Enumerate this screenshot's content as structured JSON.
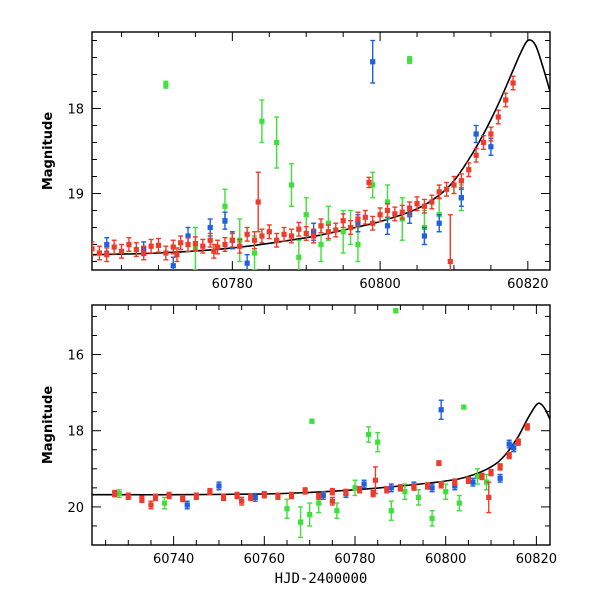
{
  "chart_data": [
    {
      "type": "scatter",
      "title": "",
      "xlabel": "",
      "ylabel": "Magnitude",
      "xlim": [
        60761,
        60823
      ],
      "ylim": [
        19.9,
        17.1
      ],
      "y_inverted": true,
      "xticks": [
        60780,
        60800,
        60820
      ],
      "yticks": [
        18,
        19
      ],
      "colors": {
        "red": "#ee3b2b",
        "green": "#3ee03a",
        "blue": "#1f5fe0",
        "model": "#000000"
      },
      "model_curve": {
        "x": [
          60761,
          60770,
          60780,
          60790,
          60795,
          60800,
          60805,
          60808,
          60810,
          60812,
          60814,
          60816,
          60818,
          60819,
          60820,
          60821,
          60822,
          60823
        ],
        "y": [
          19.72,
          19.7,
          19.64,
          19.52,
          19.43,
          19.33,
          19.18,
          19.02,
          18.85,
          18.6,
          18.3,
          17.95,
          17.55,
          17.35,
          17.2,
          17.25,
          17.5,
          17.8
        ]
      },
      "series": [
        {
          "name": "",
          "color": "red",
          "x": [
            60761,
            60762,
            60763,
            60764,
            60765,
            60766,
            60767,
            60768,
            60769,
            60770,
            60771,
            60772,
            60773,
            60774,
            60775,
            60776,
            60777,
            60778,
            60779,
            60780,
            60781,
            60782,
            60783,
            60784,
            60785,
            60786,
            60787,
            60788,
            60789,
            60790,
            60791,
            60792,
            60793,
            60794,
            60795,
            60796,
            60797,
            60798,
            60799,
            60800,
            60801,
            60802,
            60803,
            60804,
            60805,
            60806,
            60807,
            60808,
            60809,
            60810,
            60811,
            60812,
            60813,
            60814,
            60815,
            60816,
            60817,
            60818,
            60783.5,
            60798.5,
            60809.5,
            60772.5,
            60777.5
          ],
          "y": [
            19.65,
            19.7,
            19.72,
            19.63,
            19.68,
            19.6,
            19.66,
            19.7,
            19.62,
            19.61,
            19.7,
            19.63,
            19.58,
            19.6,
            19.59,
            19.62,
            19.55,
            19.63,
            19.6,
            19.55,
            19.62,
            19.48,
            19.55,
            19.5,
            19.45,
            19.55,
            19.48,
            19.5,
            19.42,
            19.47,
            19.5,
            19.38,
            19.45,
            19.43,
            19.32,
            19.4,
            19.3,
            19.28,
            19.35,
            19.25,
            19.2,
            19.24,
            19.22,
            19.18,
            19.12,
            19.15,
            19.1,
            18.98,
            18.95,
            18.9,
            18.85,
            18.72,
            18.55,
            18.4,
            18.3,
            18.1,
            17.9,
            17.7,
            19.1,
            18.87,
            19.8,
            19.72,
            19.68
          ],
          "err": [
            0.08,
            0.08,
            0.08,
            0.08,
            0.08,
            0.08,
            0.08,
            0.08,
            0.08,
            0.08,
            0.08,
            0.08,
            0.08,
            0.08,
            0.08,
            0.08,
            0.08,
            0.08,
            0.08,
            0.08,
            0.08,
            0.08,
            0.1,
            0.08,
            0.08,
            0.08,
            0.08,
            0.08,
            0.08,
            0.08,
            0.08,
            0.08,
            0.08,
            0.08,
            0.08,
            0.08,
            0.08,
            0.08,
            0.08,
            0.08,
            0.08,
            0.08,
            0.08,
            0.08,
            0.08,
            0.08,
            0.08,
            0.08,
            0.08,
            0.1,
            0.08,
            0.08,
            0.08,
            0.08,
            0.08,
            0.08,
            0.08,
            0.08,
            0.35,
            0.06,
            0.55,
            0.08,
            0.08
          ]
        },
        {
          "name": "",
          "color": "green",
          "x": [
            60771,
            60779,
            60784,
            60786,
            60788,
            60790,
            60793,
            60795,
            60797,
            60799,
            60801,
            60803,
            60804,
            60806,
            60808,
            60811,
            60775,
            60781,
            60783,
            60792,
            60796,
            60789
          ],
          "y": [
            17.72,
            19.15,
            18.15,
            18.4,
            18.9,
            19.25,
            19.35,
            19.45,
            19.6,
            18.9,
            19.1,
            19.3,
            17.43,
            19.4,
            19.25,
            19.05,
            19.65,
            19.55,
            19.7,
            19.6,
            19.4,
            19.75
          ],
          "err": [
            0.04,
            0.2,
            0.25,
            0.3,
            0.25,
            0.2,
            0.2,
            0.25,
            0.2,
            0.15,
            0.2,
            0.25,
            0.04,
            0.2,
            0.2,
            0.15,
            0.25,
            0.25,
            0.2,
            0.2,
            0.2,
            0.2
          ]
        },
        {
          "name": "",
          "color": "blue",
          "x": [
            60763,
            60768,
            60772,
            60774,
            60777,
            60779,
            60780,
            60782,
            60791,
            60797,
            60799,
            60801,
            60804,
            60806,
            60808,
            60811,
            60813,
            60815
          ],
          "y": [
            19.6,
            19.65,
            19.85,
            19.5,
            19.4,
            19.32,
            19.55,
            19.82,
            19.45,
            19.35,
            17.45,
            19.38,
            19.25,
            19.5,
            19.35,
            19.05,
            18.3,
            18.45
          ],
          "err": [
            0.08,
            0.08,
            0.1,
            0.1,
            0.1,
            0.1,
            0.1,
            0.1,
            0.1,
            0.1,
            0.25,
            0.1,
            0.1,
            0.1,
            0.1,
            0.1,
            0.1,
            0.1
          ]
        }
      ]
    },
    {
      "type": "scatter",
      "title": "",
      "xlabel": "HJD-2400000",
      "ylabel": "Magnitude",
      "xlim": [
        60722,
        60823
      ],
      "ylim": [
        21.0,
        14.7
      ],
      "y_inverted": true,
      "xticks": [
        60740,
        60760,
        60780,
        60800,
        60820
      ],
      "yticks": [
        16,
        18,
        20
      ],
      "colors": {
        "red": "#ee3b2b",
        "green": "#3ee03a",
        "blue": "#1f5fe0",
        "model": "#000000"
      },
      "model_curve": {
        "x": [
          60722,
          60740,
          60760,
          60770,
          60780,
          60790,
          60800,
          60805,
          60810,
          60813,
          60816,
          60818,
          60820,
          60821,
          60822,
          60823
        ],
        "y": [
          19.68,
          19.68,
          19.66,
          19.62,
          19.55,
          19.45,
          19.32,
          19.2,
          18.95,
          18.65,
          18.15,
          17.7,
          17.32,
          17.3,
          17.45,
          17.7
        ]
      },
      "series": [
        {
          "name": "",
          "color": "red",
          "x": [
            60727,
            60730,
            60733,
            60736,
            60739,
            60742,
            60745,
            60748,
            60751,
            60754,
            60757,
            60760,
            60763,
            60766,
            60769,
            60772,
            60775,
            60778,
            60781,
            60784,
            60787,
            60790,
            60793,
            60796,
            60799,
            60802,
            60805,
            60808,
            60810,
            60812,
            60814,
            60816,
            60818,
            60784.5,
            60798.5,
            60809.5,
            60735,
            60755,
            60775
          ],
          "y": [
            19.65,
            19.72,
            19.8,
            19.75,
            19.7,
            19.78,
            19.72,
            19.6,
            19.75,
            19.7,
            19.75,
            19.68,
            19.72,
            19.7,
            19.58,
            19.72,
            19.6,
            19.62,
            19.55,
            19.65,
            19.55,
            19.5,
            19.48,
            19.45,
            19.42,
            19.35,
            19.3,
            19.2,
            19.1,
            18.95,
            18.65,
            18.3,
            17.9,
            19.3,
            18.85,
            19.75,
            19.95,
            19.85,
            19.85
          ],
          "err": [
            0.08,
            0.08,
            0.08,
            0.08,
            0.08,
            0.08,
            0.08,
            0.08,
            0.08,
            0.08,
            0.08,
            0.08,
            0.08,
            0.08,
            0.08,
            0.08,
            0.08,
            0.08,
            0.08,
            0.08,
            0.08,
            0.08,
            0.08,
            0.08,
            0.08,
            0.08,
            0.08,
            0.08,
            0.08,
            0.08,
            0.08,
            0.08,
            0.08,
            0.35,
            0.06,
            0.4,
            0.1,
            0.1,
            0.1
          ]
        },
        {
          "name": "",
          "color": "green",
          "x": [
            60728,
            60738,
            60765,
            60768,
            60770,
            60772,
            60776,
            60780,
            60783,
            60785,
            60788,
            60791,
            60794,
            60797,
            60800,
            60803,
            60804,
            60807,
            60809,
            60789,
            60770.5
          ],
          "y": [
            19.65,
            19.9,
            20.05,
            20.4,
            20.2,
            19.9,
            20.1,
            19.5,
            18.1,
            18.3,
            20.1,
            19.6,
            19.75,
            20.3,
            19.6,
            19.9,
            17.38,
            19.2,
            19.35,
            14.85,
            17.75
          ],
          "err": [
            0.1,
            0.15,
            0.25,
            0.4,
            0.3,
            0.25,
            0.2,
            0.2,
            0.2,
            0.25,
            0.25,
            0.2,
            0.2,
            0.2,
            0.2,
            0.2,
            0.04,
            0.2,
            0.2,
            0.05,
            0.05
          ]
        },
        {
          "name": "",
          "color": "blue",
          "x": [
            60743,
            60750,
            60758,
            60773,
            60778,
            60782,
            60788,
            60793,
            60797,
            60799,
            60802,
            60806,
            60812,
            60814,
            60815
          ],
          "y": [
            19.95,
            19.45,
            19.75,
            19.7,
            19.65,
            19.4,
            19.5,
            19.45,
            19.5,
            17.45,
            19.45,
            19.35,
            19.25,
            18.35,
            18.45
          ],
          "err": [
            0.1,
            0.1,
            0.1,
            0.1,
            0.1,
            0.1,
            0.1,
            0.1,
            0.1,
            0.25,
            0.1,
            0.1,
            0.1,
            0.1,
            0.1
          ]
        }
      ]
    }
  ]
}
